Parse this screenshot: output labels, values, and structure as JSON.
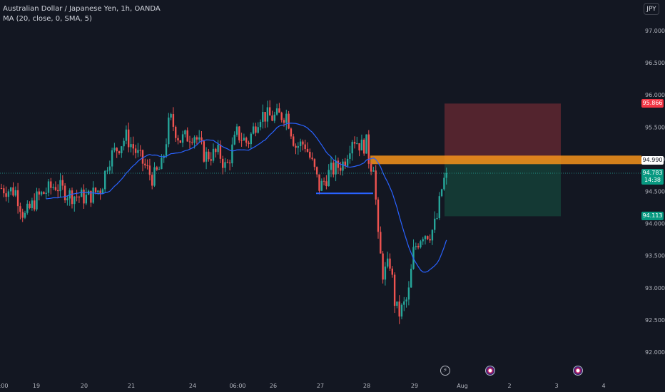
{
  "legend": {
    "symbol_line": "Australian Dollar / Japanese Yen, 1h, OANDA",
    "indicator_line": "MA (20, close, 0, SMA, 5)"
  },
  "currency_button": "JPY",
  "price_axis": {
    "labels": [
      "97.000",
      "96.500",
      "96.000",
      "95.500",
      "95.000",
      "94.500",
      "94.000",
      "93.500",
      "93.000",
      "92.500",
      "92.000"
    ],
    "tags": {
      "stop": "95.866",
      "entry": "94.990",
      "current": "94.783",
      "countdown": "14:38",
      "target": "94.113"
    }
  },
  "time_axis": {
    "labels": [
      ":00",
      "19",
      "20",
      "21",
      "24",
      "06:00",
      "26",
      "27",
      "28",
      "29",
      "Aug",
      "2",
      "3",
      "4"
    ]
  },
  "colors": {
    "background": "#131722",
    "up": "#26a69a",
    "down": "#ef5350",
    "ma": "#2962ff",
    "entry_band": "#f7931a",
    "stop_zone": "#5b2630",
    "target_zone": "#143b36"
  },
  "events": [
    {
      "icon": "flash-icon"
    },
    {
      "icon": "au-flag-icon"
    },
    {
      "icon": "au-flag-icon"
    }
  ],
  "chart_data": {
    "type": "candlestick",
    "symbol": "AUDJPY",
    "interval": "1h",
    "ylim": [
      91.8,
      97.4
    ],
    "anchors": [
      {
        "t": 0,
        "p": 94.55
      },
      {
        "t": 20,
        "p": 94.5
      },
      {
        "t": 32,
        "p": 94.1
      },
      {
        "t": 50,
        "p": 94.4
      },
      {
        "t": 75,
        "p": 94.6
      },
      {
        "t": 95,
        "p": 94.45
      },
      {
        "t": 120,
        "p": 94.4
      },
      {
        "t": 140,
        "p": 94.55
      },
      {
        "t": 150,
        "p": 95.0
      },
      {
        "t": 175,
        "p": 95.35
      },
      {
        "t": 195,
        "p": 95.0
      },
      {
        "t": 212,
        "p": 94.7
      },
      {
        "t": 225,
        "p": 94.9
      },
      {
        "t": 236,
        "p": 95.65
      },
      {
        "t": 250,
        "p": 95.3
      },
      {
        "t": 270,
        "p": 95.4
      },
      {
        "t": 285,
        "p": 95.05
      },
      {
        "t": 305,
        "p": 95.1
      },
      {
        "t": 315,
        "p": 94.85
      },
      {
        "t": 330,
        "p": 95.4
      },
      {
        "t": 345,
        "p": 95.25
      },
      {
        "t": 362,
        "p": 95.7
      },
      {
        "t": 380,
        "p": 95.65
      },
      {
        "t": 400,
        "p": 95.7
      },
      {
        "t": 412,
        "p": 95.2
      },
      {
        "t": 425,
        "p": 95.25
      },
      {
        "t": 438,
        "p": 94.85
      },
      {
        "t": 446,
        "p": 94.55
      },
      {
        "t": 460,
        "p": 94.8
      },
      {
        "t": 480,
        "p": 94.95
      },
      {
        "t": 492,
        "p": 95.35
      },
      {
        "t": 505,
        "p": 95.2
      },
      {
        "t": 512,
        "p": 95.25
      },
      {
        "t": 516,
        "p": 94.9
      },
      {
        "t": 523,
        "p": 94.95
      },
      {
        "t": 526,
        "p": 93.9
      },
      {
        "t": 535,
        "p": 93.2
      },
      {
        "t": 545,
        "p": 93.4
      },
      {
        "t": 552,
        "p": 92.7
      },
      {
        "t": 558,
        "p": 92.6
      },
      {
        "t": 570,
        "p": 92.85
      },
      {
        "t": 578,
        "p": 93.6
      },
      {
        "t": 590,
        "p": 93.85
      },
      {
        "t": 602,
        "p": 93.85
      },
      {
        "t": 610,
        "p": 94.05
      },
      {
        "t": 618,
        "p": 94.6
      },
      {
        "t": 624,
        "p": 94.78
      }
    ],
    "horizontal_line": {
      "price": 94.47,
      "from_label": "27",
      "to_label": "28"
    },
    "position": {
      "type": "short",
      "entry": 94.99,
      "stop": 95.866,
      "target": 94.113
    },
    "current_price": 94.783
  }
}
